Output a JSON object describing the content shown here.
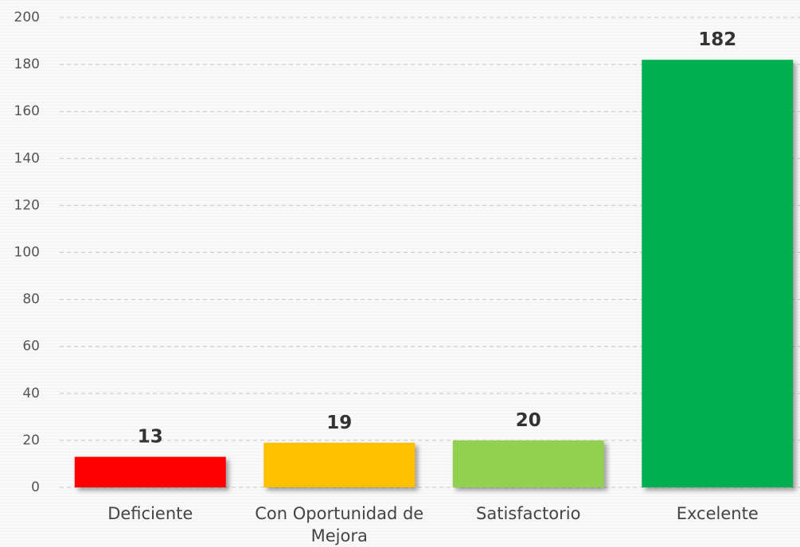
{
  "chart_data": {
    "type": "bar",
    "categories": [
      "Deficiente",
      "Con Oportunidad de Mejora",
      "Satisfactorio",
      "Excelente"
    ],
    "values": [
      13,
      19,
      20,
      182
    ],
    "colors": [
      "#ff0000",
      "#ffc000",
      "#92d050",
      "#00b050"
    ],
    "ylim": [
      0,
      200
    ],
    "yticks": [
      0,
      20,
      40,
      60,
      80,
      100,
      120,
      140,
      160,
      180,
      200
    ],
    "grid": true
  }
}
